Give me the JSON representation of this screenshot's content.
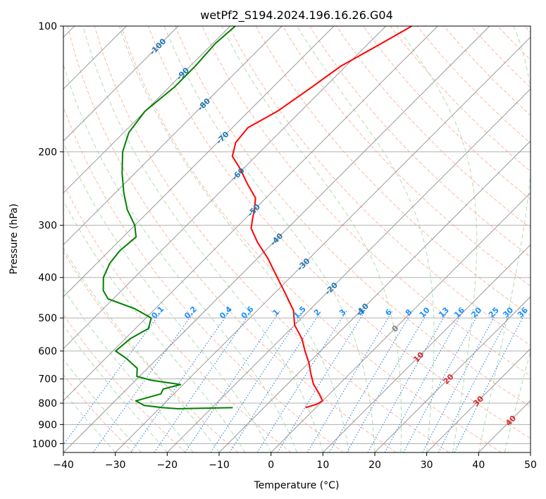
{
  "chart_data": {
    "type": "line",
    "title": "wetPf2_S194.2024.196.16.26.G04",
    "xlabel": "Temperature (°C)",
    "ylabel": "Pressure (hPa)",
    "xlim": [
      -40,
      50
    ],
    "ylim_hpa": [
      1050,
      100
    ],
    "y_scale": "log",
    "grid": true,
    "x_ticks": [
      -40,
      -30,
      -20,
      -10,
      0,
      10,
      20,
      30,
      40,
      50
    ],
    "y_ticks": [
      100,
      200,
      300,
      400,
      500,
      600,
      700,
      800,
      900,
      1000
    ],
    "skew": 45,
    "isotherm_labels": [
      {
        "text": "-100",
        "t": -100,
        "p": 112
      },
      {
        "text": "-90",
        "t": -90,
        "p": 130
      },
      {
        "text": "-80",
        "t": -80,
        "p": 154
      },
      {
        "text": "-70",
        "t": -70,
        "p": 185
      },
      {
        "text": "-60",
        "t": -60,
        "p": 226
      },
      {
        "text": "-50",
        "t": -50,
        "p": 276
      },
      {
        "text": "-40",
        "t": -40,
        "p": 324
      },
      {
        "text": "-30",
        "t": -30,
        "p": 372
      },
      {
        "text": "-20",
        "t": -20,
        "p": 425
      },
      {
        "text": "-10",
        "t": -10,
        "p": 477
      },
      {
        "text": "0",
        "t": 0,
        "p": 530
      },
      {
        "text": "10",
        "t": 10,
        "p": 620
      },
      {
        "text": "20",
        "t": 20,
        "p": 700
      },
      {
        "text": "30",
        "t": 30,
        "p": 790
      },
      {
        "text": "40",
        "t": 40,
        "p": 880
      }
    ],
    "mixing_ratio_labels": [
      "0.1",
      "0.2",
      "0.4",
      "0.6",
      "1",
      "1.5",
      "2",
      "3",
      "4",
      "6",
      "8",
      "10",
      "13",
      "16",
      "20",
      "25",
      "30",
      "36"
    ],
    "mixing_ratio_label_pressure": 490,
    "colors": {
      "temperature": "#ff0000",
      "dewpoint": "#008000",
      "isotherm_grid": "#999999",
      "dry_adiabat": "#ff9980",
      "moist_adiabat": "#8fcf8f",
      "mixing_ratio": "#1f77d4",
      "isotherm_label_cold": "#1f77b4",
      "isotherm_label_zero": "#808080",
      "isotherm_label_warm": "#d62728",
      "mixing_label": "#1e90ff"
    },
    "series": [
      {
        "role": "temperature",
        "color": "#ff0000",
        "points": [
          [
            -55.0,
            100
          ],
          [
            -57.5,
            110
          ],
          [
            -61.0,
            125
          ],
          [
            -62.5,
            140
          ],
          [
            -64.5,
            160
          ],
          [
            -67.0,
            175
          ],
          [
            -66.5,
            190
          ],
          [
            -64.5,
            205
          ],
          [
            -60.5,
            220
          ],
          [
            -56.0,
            240
          ],
          [
            -52.0,
            258
          ],
          [
            -50.0,
            275
          ],
          [
            -48.5,
            290
          ],
          [
            -47.0,
            305
          ],
          [
            -43.0,
            330
          ],
          [
            -38.0,
            360
          ],
          [
            -32.5,
            400
          ],
          [
            -27.5,
            440
          ],
          [
            -23.0,
            480
          ],
          [
            -20.0,
            520
          ],
          [
            -16.0,
            560
          ],
          [
            -13.0,
            600
          ],
          [
            -10.0,
            640
          ],
          [
            -7.5,
            680
          ],
          [
            -5.0,
            720
          ],
          [
            -2.0,
            760
          ],
          [
            0.0,
            790
          ],
          [
            -0.5,
            805
          ],
          [
            -2.0,
            820
          ]
        ]
      },
      {
        "role": "dewpoint",
        "color": "#008000",
        "points": [
          [
            -89.0,
            100
          ],
          [
            -89.5,
            110
          ],
          [
            -89.0,
            125
          ],
          [
            -89.0,
            140
          ],
          [
            -90.0,
            160
          ],
          [
            -89.0,
            180
          ],
          [
            -86.5,
            200
          ],
          [
            -82.5,
            225
          ],
          [
            -78.5,
            250
          ],
          [
            -74.5,
            275
          ],
          [
            -70.0,
            300
          ],
          [
            -67.5,
            320
          ],
          [
            -68.0,
            345
          ],
          [
            -67.5,
            370
          ],
          [
            -66.0,
            400
          ],
          [
            -63.5,
            430
          ],
          [
            -61.0,
            450
          ],
          [
            -54.0,
            475
          ],
          [
            -49.0,
            500
          ],
          [
            -47.5,
            530
          ],
          [
            -49.0,
            560
          ],
          [
            -49.5,
            600
          ],
          [
            -46.0,
            625
          ],
          [
            -42.0,
            660
          ],
          [
            -40.5,
            690
          ],
          [
            -37.0,
            705
          ],
          [
            -30.5,
            722
          ],
          [
            -33.0,
            740
          ],
          [
            -32.5,
            760
          ],
          [
            -36.0,
            790
          ],
          [
            -33.5,
            810
          ],
          [
            -29.5,
            820
          ],
          [
            -26.5,
            825
          ],
          [
            -16.0,
            820
          ]
        ]
      }
    ]
  }
}
